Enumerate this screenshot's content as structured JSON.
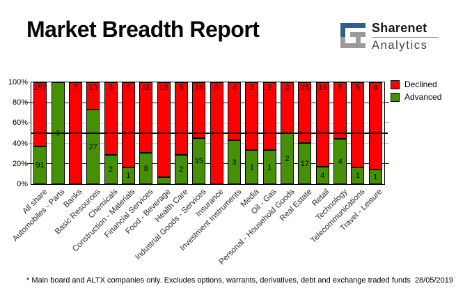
{
  "header": {
    "title": "Market Breadth Report",
    "logo": {
      "line1": "Sharenet",
      "line2": "Analytics",
      "icon_blue": "#2f5f8f",
      "icon_gray": "#9b9b9b"
    }
  },
  "chart_data": {
    "type": "bar",
    "stacked": true,
    "stacking": "percent",
    "title": "Market Breadth Report",
    "categories": [
      "All share",
      "Automobiles - Parts",
      "Banks",
      "Basic Resources",
      "Chemicals",
      "Construction - Materials",
      "Financial Services",
      "Food - Beverage",
      "Health Care",
      "Industrial Goods - Services",
      "Insurance",
      "Investment Instruments",
      "Media",
      "Oil - Gas",
      "Personal - Household Goods",
      "Real Estate",
      "Retail",
      "Technology",
      "Telecommunications",
      "Travel - Leisure"
    ],
    "series": [
      {
        "name": "Declined",
        "color": "#fe0000",
        "values": [
          157,
          0,
          7,
          10,
          5,
          5,
          18,
          13,
          5,
          18,
          6,
          4,
          2,
          2,
          2,
          25,
          19,
          5,
          5,
          6
        ]
      },
      {
        "name": "Advanced",
        "color": "#459004",
        "values": [
          91,
          1,
          0,
          27,
          2,
          1,
          8,
          1,
          2,
          15,
          0,
          3,
          1,
          1,
          2,
          17,
          4,
          4,
          1,
          1
        ]
      }
    ],
    "y_ticks": [
      "100%",
      "80%",
      "60%",
      "40%",
      "20%",
      "0%"
    ],
    "ylim": [
      0,
      100
    ],
    "ylabel": "",
    "xlabel": "",
    "reference_line_pct": 50,
    "gridlines": {
      "navy_levels": [
        80,
        20
      ],
      "silver_levels": [
        60,
        40
      ],
      "navy_color": "#000080",
      "silver_color": "#c0c0c0"
    },
    "legend_position": "top-right",
    "legend": [
      "Declined",
      "Advanced"
    ]
  },
  "footer": {
    "note": "* Main board and ALTX companies only. Excludes options, warrants, derivatives, debt and exchange traded funds",
    "date": "28/05/2019"
  }
}
